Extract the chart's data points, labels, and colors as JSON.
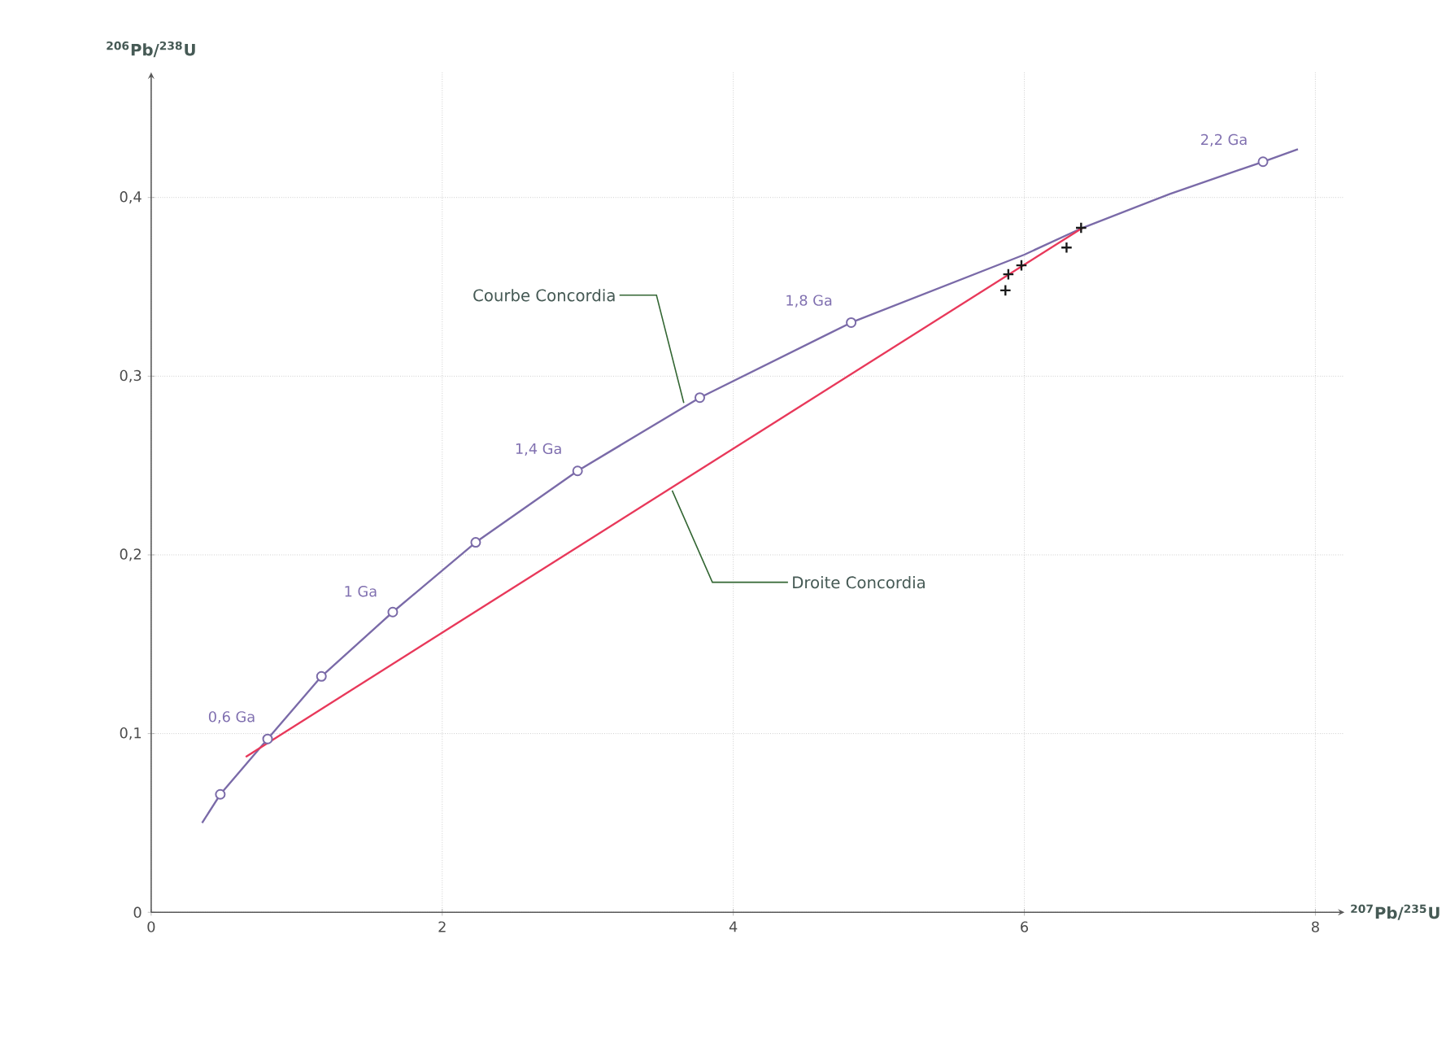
{
  "chart_data": {
    "type": "line",
    "xlabel": "$^{207}$Pb/$^{235}$U",
    "ylabel": "$^{206}$Pb/$^{238}$U",
    "xlim": [
      0,
      8.2
    ],
    "ylim": [
      0,
      0.47
    ],
    "xticks": [
      0,
      2,
      4,
      6,
      8
    ],
    "yticks": [
      0,
      {
        "value": 0.1,
        "label": "0,1"
      },
      {
        "value": 0.2,
        "label": "0,2"
      },
      {
        "value": 0.3,
        "label": "0,3"
      },
      {
        "value": 0.4,
        "label": "0,4"
      }
    ],
    "grid": true,
    "series": [
      {
        "marker": "none",
        "color": "#7a6aa8",
        "x": [
          0.35,
          0.475,
          0.8,
          1.17,
          1.66,
          2.23,
          2.93,
          3.77,
          4.81,
          6.0,
          6.4,
          7.0,
          7.64,
          7.88
        ],
        "values": [
          0.05,
          0.066,
          0.097,
          0.132,
          0.168,
          0.207,
          0.247,
          0.288,
          0.33,
          0.368,
          0.383,
          0.402,
          0.42,
          0.427
        ]
      },
      {
        "type": "scatter",
        "marker": "circle",
        "color": "#7a6aa8",
        "x": [
          0.475,
          0.8,
          1.17,
          1.66,
          2.23,
          2.93,
          3.77,
          4.81,
          7.64
        ],
        "values": [
          0.066,
          0.097,
          0.132,
          0.168,
          0.207,
          0.247,
          0.288,
          0.33,
          0.42
        ]
      },
      {
        "marker": "none",
        "color": "#e8385a",
        "x": [
          0.65,
          6.4
        ],
        "values": [
          0.087,
          0.383
        ]
      },
      {
        "type": "scatter",
        "marker": "cross",
        "color": "#1a1a1a",
        "x": [
          5.87,
          5.89,
          5.98,
          6.29,
          6.39
        ],
        "values": [
          0.348,
          0.357,
          0.362,
          0.372,
          0.383
        ]
      }
    ],
    "annotations": [
      {
        "text": "0,6 Ga",
        "x": 0.8,
        "y": 0.097
      },
      {
        "text": "1 Ga",
        "x": 1.66,
        "y": 0.168
      },
      {
        "text": "1,4 Ga",
        "x": 2.93,
        "y": 0.247
      },
      {
        "text": "1,8 Ga",
        "x": 4.81,
        "y": 0.33
      },
      {
        "text": "2,2 Ga",
        "x": 7.64,
        "y": 0.42
      },
      {
        "text": "Courbe Concordia",
        "x": 3.66,
        "y": 0.285
      },
      {
        "text": "Droite Concordia",
        "x": 3.58,
        "y": 0.236
      }
    ]
  }
}
